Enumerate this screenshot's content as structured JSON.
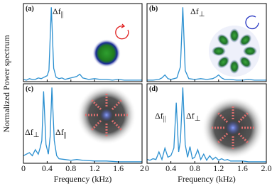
{
  "figure": {
    "ylabel": "Normalized Power spectrum"
  },
  "chart_data": [
    {
      "type": "line",
      "panel_label": "(a)",
      "xlim": [
        0,
        2
      ],
      "ylim": [
        0,
        1.05
      ],
      "xticks": [
        0,
        0.4,
        0.8,
        1.2,
        1.6,
        2
      ],
      "annotations": [
        {
          "text": "Δf",
          "sub": "||"
        }
      ],
      "series": [
        {
          "color": "#2a8fd0",
          "x": [
            0,
            0.05,
            0.1,
            0.15,
            0.2,
            0.25,
            0.3,
            0.35,
            0.4,
            0.43,
            0.47,
            0.51,
            0.55,
            0.6,
            0.65,
            0.7,
            0.75,
            0.8,
            0.85,
            0.9,
            0.95,
            1.0,
            1.1,
            1.2,
            1.3,
            1.4,
            1.5,
            1.6,
            1.7,
            1.8,
            1.9,
            2.0
          ],
          "values": [
            0.03,
            0.02,
            0.04,
            0.03,
            0.03,
            0.05,
            0.04,
            0.06,
            0.08,
            0.15,
            1.0,
            0.18,
            0.06,
            0.04,
            0.05,
            0.03,
            0.04,
            0.05,
            0.06,
            0.07,
            0.1,
            0.05,
            0.03,
            0.04,
            0.03,
            0.03,
            0.02,
            0.03,
            0.02,
            0.02,
            0.02,
            0.02
          ]
        }
      ]
    },
    {
      "type": "line",
      "panel_label": "(b)",
      "xlim": [
        0,
        2
      ],
      "ylim": [
        0,
        1.05
      ],
      "xticks": [
        0,
        0.4,
        0.8,
        1.2,
        1.6,
        2
      ],
      "annotations": [
        {
          "text": "Δf",
          "sub": "⊥"
        }
      ],
      "series": [
        {
          "color": "#2a8fd0",
          "x": [
            0,
            0.1,
            0.2,
            0.25,
            0.3,
            0.35,
            0.4,
            0.45,
            0.5,
            0.56,
            0.6,
            0.64,
            0.7,
            0.8,
            0.9,
            1.0,
            1.1,
            1.15,
            1.2,
            1.25,
            1.3,
            1.4,
            1.5,
            1.6,
            1.7,
            1.8,
            1.9,
            2.0
          ],
          "values": [
            0.02,
            0.02,
            0.03,
            0.05,
            0.09,
            0.04,
            0.03,
            0.04,
            0.05,
            0.2,
            1.0,
            0.15,
            0.04,
            0.03,
            0.04,
            0.03,
            0.04,
            0.06,
            0.09,
            0.05,
            0.03,
            0.03,
            0.02,
            0.02,
            0.03,
            0.02,
            0.02,
            0.02
          ]
        }
      ]
    },
    {
      "type": "line",
      "panel_label": "(c)",
      "xlabel": "Frequency (kHz)",
      "xlim": [
        0,
        2
      ],
      "ylim": [
        0,
        1.05
      ],
      "xticks": [
        0,
        0.4,
        0.8,
        1.2,
        1.6,
        2
      ],
      "annotations": [
        {
          "text": "Δf",
          "sub": "⊥"
        },
        {
          "text": "Δf",
          "sub": "||"
        }
      ],
      "series": [
        {
          "color": "#2a8fd0",
          "x": [
            0,
            0.05,
            0.1,
            0.15,
            0.2,
            0.25,
            0.28,
            0.31,
            0.34,
            0.38,
            0.42,
            0.45,
            0.48,
            0.52,
            0.56,
            0.6,
            0.7,
            0.8,
            0.9,
            1.0,
            1.2,
            1.4,
            1.6,
            1.8,
            2.0
          ],
          "values": [
            0.1,
            0.12,
            0.14,
            0.1,
            0.18,
            0.12,
            0.2,
            0.3,
            0.95,
            0.25,
            0.12,
            0.35,
            1.0,
            0.3,
            0.1,
            0.06,
            0.05,
            0.04,
            0.05,
            0.04,
            0.03,
            0.03,
            0.02,
            0.02,
            0.02
          ]
        }
      ]
    },
    {
      "type": "line",
      "panel_label": "(d)",
      "xlabel": "Frequency (kHz)",
      "xlim": [
        0,
        2
      ],
      "ylim": [
        0,
        1.05
      ],
      "xticks": [
        0,
        0.4,
        0.8,
        1.2,
        1.6,
        {
          "value": 2,
          "label": "2.0"
        }
      ],
      "annotations": [
        {
          "text": "Δf",
          "sub": "||"
        },
        {
          "text": "Δf",
          "sub": "⊥"
        }
      ],
      "series": [
        {
          "color": "#2a8fd0",
          "x": [
            0,
            0.05,
            0.1,
            0.15,
            0.2,
            0.25,
            0.3,
            0.35,
            0.4,
            0.45,
            0.49,
            0.53,
            0.56,
            0.6,
            0.64,
            0.68,
            0.72,
            0.76,
            0.8,
            0.85,
            0.9,
            0.95,
            1.0,
            1.05,
            1.1,
            1.15,
            1.2,
            1.25,
            1.3,
            1.35,
            1.4,
            1.5,
            1.6,
            1.7,
            1.8,
            1.9,
            2.0
          ],
          "values": [
            0.05,
            0.04,
            0.06,
            0.05,
            0.15,
            0.05,
            0.2,
            0.08,
            0.1,
            0.2,
            0.8,
            0.15,
            0.3,
            1.0,
            0.25,
            0.08,
            0.22,
            0.06,
            0.08,
            0.18,
            0.05,
            0.12,
            0.04,
            0.1,
            0.05,
            0.08,
            0.04,
            0.06,
            0.04,
            0.05,
            0.03,
            0.03,
            0.03,
            0.02,
            0.02,
            0.02,
            0.02
          ]
        }
      ]
    }
  ]
}
